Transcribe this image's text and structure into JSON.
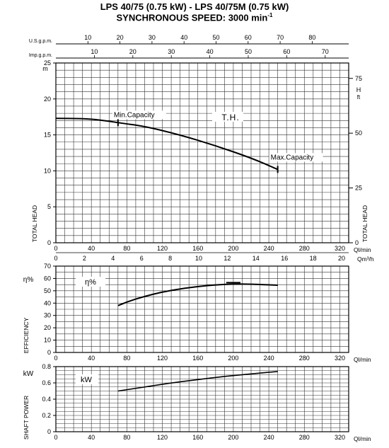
{
  "title_line1": "LPS 40/75 (0.75 kW) - LPS 40/75M (0.75 kW)",
  "title_line2": "SYNCHRONOUS SPEED: 3000 min",
  "title_sup": "-1",
  "chart_data": [
    {
      "type": "line",
      "name": "head",
      "x_unit": "Ql/min",
      "x_ticks": [
        0,
        40,
        80,
        120,
        160,
        200,
        240,
        280,
        320
      ],
      "xlim": [
        0,
        330
      ],
      "ylabel": "TOTAL HEAD",
      "ylabel_right": "TOTAL HEAD",
      "y_unit": "m",
      "y_unit_right": "ft",
      "ylim": [
        0,
        25
      ],
      "y_ticks": [
        0,
        5,
        10,
        15,
        20,
        25
      ],
      "y_ticks_right": [
        0,
        25,
        50,
        75
      ],
      "curve_label": "T.H.",
      "x": [
        0,
        20,
        40,
        60,
        70,
        100,
        140,
        180,
        220,
        250
      ],
      "y": [
        17.3,
        17.3,
        17.2,
        16.9,
        16.7,
        16.2,
        15.0,
        13.5,
        11.8,
        10.2
      ],
      "annotations": [
        {
          "text": "Min.Capacity",
          "x": 70,
          "y": 16.7
        },
        {
          "text": "Max.Capacity",
          "x": 250,
          "y": 10.2
        }
      ],
      "top_axes": [
        {
          "label": "U.S.g.p.m.",
          "ticks": [
            10,
            20,
            30,
            40,
            50,
            60,
            70,
            80
          ]
        },
        {
          "label": "Imp.g.p.m.",
          "ticks": [
            10,
            20,
            30,
            40,
            50,
            60,
            70
          ]
        }
      ],
      "bottom_axis2": {
        "label": "Qm³/h",
        "ticks": [
          0,
          2,
          4,
          6,
          8,
          10,
          12,
          14,
          16,
          18,
          20
        ]
      }
    },
    {
      "type": "line",
      "name": "efficiency",
      "ylabel": "EFFICIENCY",
      "y_unit": "η%",
      "curve_label": "η%",
      "x_unit": "Ql/min",
      "x_ticks": [
        0,
        40,
        80,
        120,
        160,
        200,
        240,
        280,
        320
      ],
      "ylim": [
        0,
        70
      ],
      "y_ticks": [
        0,
        10,
        20,
        30,
        40,
        50,
        60,
        70
      ],
      "x": [
        70,
        80,
        100,
        120,
        140,
        160,
        180,
        200,
        220,
        250
      ],
      "y": [
        38,
        41,
        45.5,
        49,
        51.5,
        53.5,
        54.8,
        55.5,
        55.4,
        54.5
      ]
    },
    {
      "type": "line",
      "name": "shaft_power",
      "ylabel": "SHAFT POWER",
      "y_unit": "kW",
      "curve_label": "kW",
      "x_unit": "Ql/min",
      "x_ticks": [
        0,
        40,
        80,
        120,
        160,
        200,
        240,
        280,
        320
      ],
      "ylim": [
        0,
        0.8
      ],
      "y_ticks": [
        0,
        0.2,
        0.4,
        0.6,
        0.8
      ],
      "x": [
        70,
        100,
        130,
        160,
        190,
        220,
        250
      ],
      "y": [
        0.5,
        0.55,
        0.6,
        0.64,
        0.68,
        0.71,
        0.74
      ]
    }
  ]
}
